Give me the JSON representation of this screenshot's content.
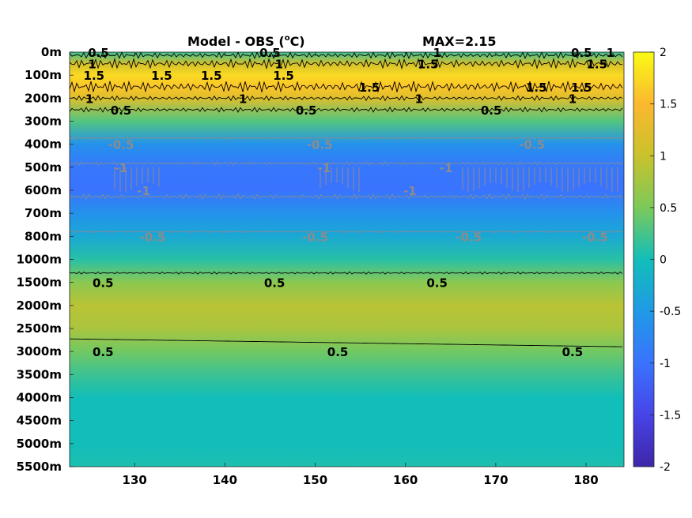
{
  "chart_data": {
    "type": "heatmap",
    "title": "Model - OBS (",
    "title_sup": "o",
    "title_unit": "C)",
    "max_label": "MAX=2.15",
    "x": {
      "ticks": [
        130,
        140,
        150,
        160,
        170,
        180
      ],
      "range": [
        122.8,
        184.2
      ]
    },
    "y": {
      "ticks": [
        "0m",
        "100m",
        "200m",
        "300m",
        "400m",
        "500m",
        "600m",
        "700m",
        "800m",
        "1000m",
        "1500m",
        "2000m",
        "2500m",
        "3000m",
        "3500m",
        "4000m",
        "4500m",
        "5000m",
        "5500m"
      ]
    },
    "colorbar": {
      "ticks": [
        "2",
        "1.5",
        "1",
        "0.5",
        "0",
        "-0.5",
        "-1",
        "-1.5",
        "-2"
      ],
      "range": [
        -2,
        2
      ]
    },
    "colors": {
      "low": "#3e26a8",
      "mid": "#12beb9",
      "high": "#f9fb15",
      "contour_pos": "#000000",
      "contour_neg": "#8c8c8c"
    },
    "depth_profile": [
      {
        "depth": "0m",
        "value": 0.2
      },
      {
        "depth": "50m",
        "value": 1.1
      },
      {
        "depth": "100m",
        "value": 1.75
      },
      {
        "depth": "150m",
        "value": 1.6
      },
      {
        "depth": "200m",
        "value": 1.2
      },
      {
        "depth": "300m",
        "value": 0.3
      },
      {
        "depth": "400m",
        "value": -0.6
      },
      {
        "depth": "500m",
        "value": -0.95
      },
      {
        "depth": "600m",
        "value": -1.0
      },
      {
        "depth": "700m",
        "value": -0.6
      },
      {
        "depth": "800m",
        "value": -0.3
      },
      {
        "depth": "1000m",
        "value": 0.1
      },
      {
        "depth": "1500m",
        "value": 0.6
      },
      {
        "depth": "2000m",
        "value": 0.9
      },
      {
        "depth": "2500m",
        "value": 0.8
      },
      {
        "depth": "3000m",
        "value": 0.45
      },
      {
        "depth": "3500m",
        "value": 0.2
      },
      {
        "depth": "4000m",
        "value": 0.0
      },
      {
        "depth": "4500m",
        "value": 0.0
      },
      {
        "depth": "5000m",
        "value": 0.0
      },
      {
        "depth": "5500m",
        "value": 0.05
      }
    ],
    "contour_labels": [
      {
        "text": "0.5",
        "x": 126.0,
        "depth": "0m",
        "sign": "pos"
      },
      {
        "text": "1",
        "x": 125.3,
        "depth": "50m",
        "sign": "pos"
      },
      {
        "text": "0.5",
        "x": 145.0,
        "depth": "0m",
        "sign": "pos"
      },
      {
        "text": "1",
        "x": 163.5,
        "depth": "0m",
        "sign": "pos"
      },
      {
        "text": "0.5",
        "x": 179.5,
        "depth": "0m",
        "sign": "pos"
      },
      {
        "text": "1",
        "x": 182.7,
        "depth": "0m",
        "sign": "pos"
      },
      {
        "text": "1.5",
        "x": 125.5,
        "depth": "100m",
        "sign": "pos"
      },
      {
        "text": "1.5",
        "x": 133.0,
        "depth": "100m",
        "sign": "pos"
      },
      {
        "text": "1.5",
        "x": 138.5,
        "depth": "100m",
        "sign": "pos"
      },
      {
        "text": "1",
        "x": 146.0,
        "depth": "50m",
        "sign": "pos"
      },
      {
        "text": "1.5",
        "x": 146.5,
        "depth": "100m",
        "sign": "pos"
      },
      {
        "text": "1.5",
        "x": 162.5,
        "depth": "50m",
        "sign": "pos"
      },
      {
        "text": "1.5",
        "x": 181.2,
        "depth": "50m",
        "sign": "pos"
      },
      {
        "text": "1.5",
        "x": 156.0,
        "depth": "150m",
        "sign": "pos"
      },
      {
        "text": "1.5",
        "x": 174.5,
        "depth": "150m",
        "sign": "pos"
      },
      {
        "text": "1.5",
        "x": 179.5,
        "depth": "150m",
        "sign": "pos"
      },
      {
        "text": "1",
        "x": 125.0,
        "depth": "200m",
        "sign": "pos"
      },
      {
        "text": "1",
        "x": 142.0,
        "depth": "200m",
        "sign": "pos"
      },
      {
        "text": "1",
        "x": 161.5,
        "depth": "200m",
        "sign": "pos"
      },
      {
        "text": "1",
        "x": 178.5,
        "depth": "200m",
        "sign": "pos"
      },
      {
        "text": "0.5",
        "x": 128.5,
        "depth": "250m",
        "sign": "pos"
      },
      {
        "text": "0.5",
        "x": 149.0,
        "depth": "250m",
        "sign": "pos"
      },
      {
        "text": "0.5",
        "x": 169.5,
        "depth": "250m",
        "sign": "pos"
      },
      {
        "text": "-0.5",
        "x": 128.5,
        "depth": "400m",
        "sign": "neg"
      },
      {
        "text": "-0.5",
        "x": 150.5,
        "depth": "400m",
        "sign": "neg"
      },
      {
        "text": "-0.5",
        "x": 174.0,
        "depth": "400m",
        "sign": "neg"
      },
      {
        "text": "-1",
        "x": 128.5,
        "depth": "500m",
        "sign": "neg"
      },
      {
        "text": "-1",
        "x": 151.0,
        "depth": "500m",
        "sign": "neg"
      },
      {
        "text": "-1",
        "x": 164.5,
        "depth": "500m",
        "sign": "neg"
      },
      {
        "text": "-1",
        "x": 131.0,
        "depth": "600m",
        "sign": "neg"
      },
      {
        "text": "-1",
        "x": 160.5,
        "depth": "600m",
        "sign": "neg"
      },
      {
        "text": "-0.5",
        "x": 132.0,
        "depth": "800m",
        "sign": "neg"
      },
      {
        "text": "-0.5",
        "x": 150.0,
        "depth": "800m",
        "sign": "neg"
      },
      {
        "text": "-0.5",
        "x": 167.0,
        "depth": "800m",
        "sign": "neg"
      },
      {
        "text": "-0.5",
        "x": 181.0,
        "depth": "800m",
        "sign": "neg"
      },
      {
        "text": "0.5",
        "x": 126.5,
        "depth": "1500m",
        "sign": "pos"
      },
      {
        "text": "0.5",
        "x": 145.5,
        "depth": "1500m",
        "sign": "pos"
      },
      {
        "text": "0.5",
        "x": 163.5,
        "depth": "1500m",
        "sign": "pos"
      },
      {
        "text": "0.5",
        "x": 126.5,
        "depth": "3000m",
        "sign": "pos"
      },
      {
        "text": "0.5",
        "x": 152.5,
        "depth": "3000m",
        "sign": "pos"
      },
      {
        "text": "0.5",
        "x": 178.5,
        "depth": "3000m",
        "sign": "pos"
      }
    ]
  }
}
